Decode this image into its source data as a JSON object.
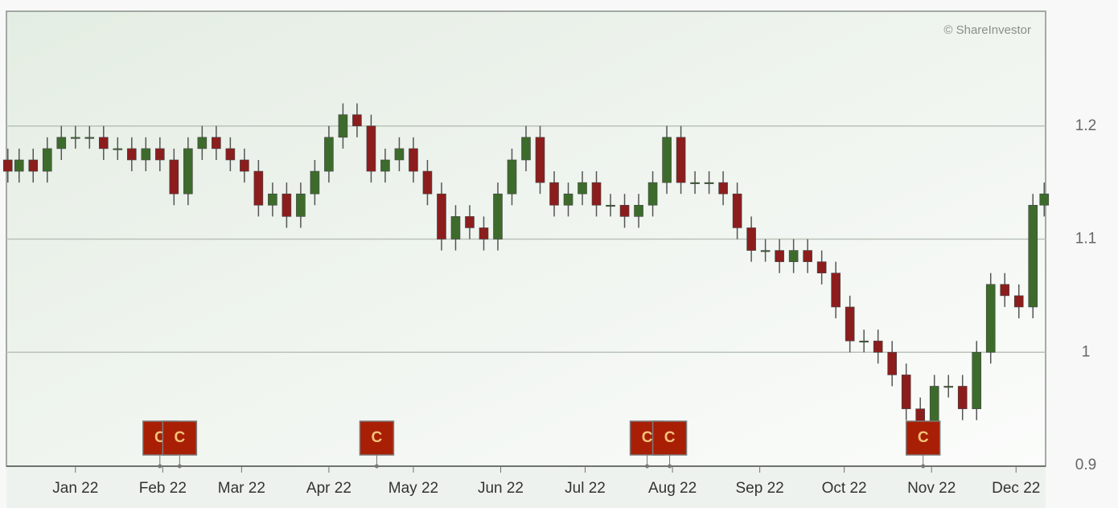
{
  "chart_data": {
    "type": "candlestick",
    "watermark": "© ShareInvestor",
    "x": [
      -24,
      -20,
      -15,
      -10,
      -5,
      0,
      5,
      10,
      15,
      20,
      25,
      30,
      35,
      40,
      45,
      50,
      55,
      60,
      65,
      70,
      75,
      80,
      85,
      90,
      95,
      100,
      105,
      110,
      115,
      120,
      125,
      130,
      135,
      140,
      145,
      150,
      155,
      160,
      165,
      170,
      175,
      180,
      185,
      190,
      195,
      200,
      205,
      210,
      215,
      220,
      225,
      230,
      235,
      240,
      245,
      250,
      255,
      260,
      265,
      270,
      275,
      280,
      285,
      290,
      295,
      300,
      305,
      310,
      315,
      320,
      325,
      330,
      335,
      340,
      344
    ],
    "open": [
      1.17,
      1.16,
      1.17,
      1.16,
      1.18,
      1.19,
      1.19,
      1.19,
      1.18,
      1.18,
      1.17,
      1.18,
      1.17,
      1.14,
      1.18,
      1.19,
      1.18,
      1.17,
      1.16,
      1.13,
      1.14,
      1.12,
      1.14,
      1.16,
      1.19,
      1.21,
      1.2,
      1.16,
      1.17,
      1.18,
      1.16,
      1.14,
      1.1,
      1.12,
      1.11,
      1.1,
      1.14,
      1.17,
      1.19,
      1.15,
      1.13,
      1.14,
      1.15,
      1.13,
      1.13,
      1.12,
      1.13,
      1.15,
      1.19,
      1.15,
      1.15,
      1.15,
      1.14,
      1.11,
      1.09,
      1.09,
      1.08,
      1.09,
      1.08,
      1.07,
      1.04,
      1.01,
      1.01,
      1,
      0.98,
      0.95,
      0.93,
      0.97,
      0.97,
      0.95,
      1,
      1.06,
      1.05,
      1.04,
      1.13
    ],
    "high": [
      1.18,
      1.18,
      1.18,
      1.19,
      1.2,
      1.2,
      1.2,
      1.2,
      1.19,
      1.19,
      1.19,
      1.19,
      1.18,
      1.19,
      1.2,
      1.2,
      1.19,
      1.18,
      1.17,
      1.15,
      1.15,
      1.15,
      1.17,
      1.2,
      1.22,
      1.22,
      1.21,
      1.18,
      1.19,
      1.19,
      1.17,
      1.15,
      1.13,
      1.13,
      1.12,
      1.15,
      1.18,
      1.2,
      1.2,
      1.16,
      1.15,
      1.16,
      1.16,
      1.14,
      1.14,
      1.14,
      1.16,
      1.2,
      1.2,
      1.16,
      1.16,
      1.16,
      1.15,
      1.12,
      1.1,
      1.1,
      1.1,
      1.1,
      1.09,
      1.08,
      1.05,
      1.02,
      1.02,
      1.01,
      0.99,
      0.96,
      0.98,
      0.98,
      0.98,
      1.01,
      1.07,
      1.07,
      1.06,
      1.14,
      1.15
    ],
    "low": [
      1.15,
      1.15,
      1.15,
      1.15,
      1.17,
      1.18,
      1.18,
      1.17,
      1.17,
      1.16,
      1.16,
      1.16,
      1.13,
      1.13,
      1.17,
      1.17,
      1.16,
      1.15,
      1.12,
      1.12,
      1.11,
      1.11,
      1.13,
      1.15,
      1.18,
      1.19,
      1.15,
      1.15,
      1.16,
      1.15,
      1.13,
      1.09,
      1.09,
      1.1,
      1.09,
      1.09,
      1.13,
      1.16,
      1.14,
      1.12,
      1.12,
      1.13,
      1.12,
      1.12,
      1.11,
      1.11,
      1.12,
      1.14,
      1.14,
      1.14,
      1.14,
      1.13,
      1.1,
      1.08,
      1.08,
      1.07,
      1.07,
      1.07,
      1.06,
      1.03,
      1,
      1,
      0.99,
      0.97,
      0.94,
      0.92,
      0.92,
      0.96,
      0.94,
      0.94,
      0.99,
      1.04,
      1.03,
      1.03,
      1.12
    ],
    "close": [
      1.16,
      1.17,
      1.16,
      1.18,
      1.19,
      1.19,
      1.19,
      1.18,
      1.18,
      1.17,
      1.18,
      1.17,
      1.14,
      1.18,
      1.19,
      1.18,
      1.17,
      1.16,
      1.13,
      1.14,
      1.12,
      1.14,
      1.16,
      1.19,
      1.21,
      1.2,
      1.16,
      1.17,
      1.18,
      1.16,
      1.14,
      1.1,
      1.12,
      1.11,
      1.1,
      1.14,
      1.17,
      1.19,
      1.15,
      1.13,
      1.14,
      1.15,
      1.13,
      1.13,
      1.12,
      1.13,
      1.15,
      1.19,
      1.15,
      1.15,
      1.15,
      1.14,
      1.11,
      1.09,
      1.09,
      1.08,
      1.09,
      1.08,
      1.07,
      1.04,
      1.01,
      1.01,
      1,
      0.98,
      0.95,
      0.93,
      0.97,
      0.97,
      0.95,
      1,
      1.06,
      1.05,
      1.04,
      1.13,
      1.14
    ],
    "up_color": "#3d6b2c",
    "down_color": "#8c1d1d",
    "events": [
      {
        "x": 30,
        "label": "C"
      },
      {
        "x": 37,
        "label": "C"
      },
      {
        "x": 107,
        "label": "C"
      },
      {
        "x": 203,
        "label": "C"
      },
      {
        "x": 211,
        "label": "C"
      },
      {
        "x": 301,
        "label": "C"
      }
    ],
    "xlim": [
      -24.5,
      344.5
    ],
    "xticks": [
      {
        "value": 0,
        "label": "Jan 22"
      },
      {
        "value": 31,
        "label": "Feb 22"
      },
      {
        "value": 59,
        "label": "Mar 22"
      },
      {
        "value": 90,
        "label": "Apr 22"
      },
      {
        "value": 120,
        "label": "May 22"
      },
      {
        "value": 151,
        "label": "Jun 22"
      },
      {
        "value": 181,
        "label": "Jul 22"
      },
      {
        "value": 212,
        "label": "Aug 22"
      },
      {
        "value": 243,
        "label": "Sep 22"
      },
      {
        "value": 273,
        "label": "Oct 22"
      },
      {
        "value": 304,
        "label": "Nov 22"
      },
      {
        "value": 334,
        "label": "Dec 22"
      }
    ],
    "ylim": [
      0.9,
      1.3
    ],
    "yticks": [
      0.9,
      1,
      1.1,
      1.2
    ],
    "grid": true
  }
}
